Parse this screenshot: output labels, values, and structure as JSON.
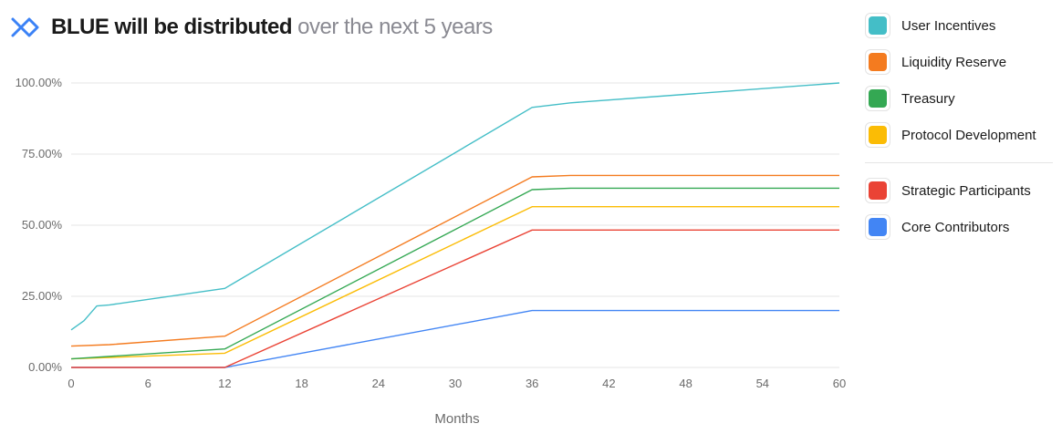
{
  "header": {
    "title_main": "BLUE will be distributed",
    "title_sub": " over the next 5 years",
    "logo_icon": "bluefin-logo-icon"
  },
  "legend": {
    "group1": [
      {
        "label": "User Incentives",
        "color": "#44BEC7"
      },
      {
        "label": "Liquidity Reserve",
        "color": "#F47B1F"
      },
      {
        "label": "Treasury",
        "color": "#34A853"
      },
      {
        "label": "Protocol Development",
        "color": "#FBBC05"
      }
    ],
    "group2": [
      {
        "label": "Strategic Participants",
        "color": "#EA4335"
      },
      {
        "label": "Core Contributors",
        "color": "#4285F4"
      }
    ]
  },
  "chart_data": {
    "type": "line",
    "xlabel": "Months",
    "ylabel": "",
    "xlim": [
      0,
      60
    ],
    "ylim": [
      0,
      100
    ],
    "x_ticks": [
      0,
      6,
      12,
      18,
      24,
      30,
      36,
      42,
      48,
      54,
      60
    ],
    "y_ticks": [
      0,
      25,
      50,
      75,
      100
    ],
    "y_tick_labels": [
      "0.00%",
      "25.00%",
      "50.00%",
      "75.00%",
      "100.00%"
    ],
    "grid": "horizontal",
    "legend_position": "right",
    "series": [
      {
        "name": "User Incentives",
        "color": "#44BEC7",
        "x": [
          0,
          1,
          2,
          3,
          12,
          36,
          39,
          60
        ],
        "y": [
          13.2,
          16.4,
          21.6,
          22.0,
          27.8,
          91.4,
          93.0,
          100.0
        ]
      },
      {
        "name": "Liquidity Reserve",
        "color": "#F47B1F",
        "x": [
          0,
          3,
          12,
          36,
          39,
          60
        ],
        "y": [
          7.5,
          8.0,
          11.0,
          67.0,
          67.5,
          67.5
        ]
      },
      {
        "name": "Treasury",
        "color": "#34A853",
        "x": [
          0,
          12,
          36,
          39,
          60
        ],
        "y": [
          3.0,
          6.5,
          62.5,
          63.0,
          63.0
        ]
      },
      {
        "name": "Protocol Development",
        "color": "#FBBC05",
        "x": [
          0,
          12,
          36,
          60
        ],
        "y": [
          3.0,
          5.0,
          56.5,
          56.5
        ]
      },
      {
        "name": "Strategic Participants",
        "color": "#EA4335",
        "x": [
          0,
          12,
          36,
          60
        ],
        "y": [
          0.0,
          0.0,
          48.3,
          48.3
        ]
      },
      {
        "name": "Core Contributors",
        "color": "#4285F4",
        "x": [
          0,
          12,
          36,
          60
        ],
        "y": [
          0.0,
          0.0,
          20.0,
          20.0
        ]
      }
    ]
  }
}
